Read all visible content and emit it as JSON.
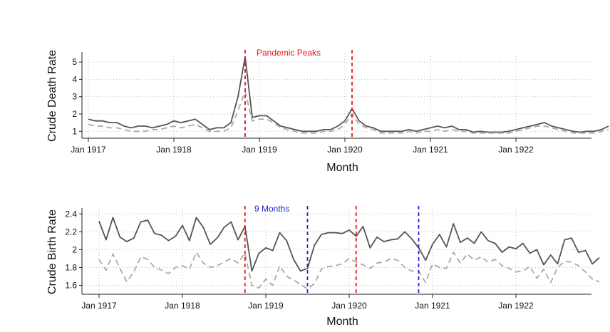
{
  "chart_data": [
    {
      "type": "line",
      "ylabel": "Crude Death Rate",
      "xlabel": "Month",
      "x_ticks": [
        "Jan 1917",
        "Jan 1918",
        "Jan 1919",
        "Jan 1920",
        "Jan 1921",
        "Jan 1922"
      ],
      "y_ticks": [
        "1",
        "2",
        "3",
        "4",
        "5"
      ],
      "ylim": [
        0.6,
        5.5
      ],
      "grid": true,
      "annotation": {
        "text": "Pandemic Peaks",
        "color": "#e8141c"
      },
      "vlines": [
        {
          "month": 22,
          "color": "#e8141c",
          "style": "dashed"
        },
        {
          "month": 37,
          "color": "#e8141c",
          "style": "dashed"
        }
      ],
      "series": [
        {
          "style": "solid",
          "color": "#555555",
          "values": [
            1.7,
            1.6,
            1.6,
            1.5,
            1.5,
            1.3,
            1.2,
            1.3,
            1.3,
            1.2,
            1.3,
            1.4,
            1.6,
            1.5,
            1.6,
            1.7,
            1.4,
            1.1,
            1.2,
            1.2,
            1.5,
            3.0,
            5.3,
            1.8,
            1.9,
            1.9,
            1.6,
            1.3,
            1.2,
            1.1,
            1.0,
            1.0,
            1.0,
            1.1,
            1.1,
            1.3,
            1.6,
            2.3,
            1.6,
            1.3,
            1.2,
            1.0,
            1.0,
            1.0,
            1.0,
            1.1,
            1.0,
            1.1,
            1.2,
            1.3,
            1.2,
            1.3,
            1.1,
            1.1,
            0.95,
            1.0,
            0.95,
            0.95,
            0.95,
            1.0,
            1.1,
            1.2,
            1.3,
            1.4,
            1.5,
            1.3,
            1.2,
            1.1,
            1.0,
            0.95,
            1.0,
            1.0,
            1.1,
            1.3
          ]
        },
        {
          "style": "dashed",
          "color": "#aaaaaa",
          "values": [
            1.4,
            1.3,
            1.3,
            1.2,
            1.2,
            1.1,
            1.0,
            1.0,
            1.0,
            1.1,
            1.1,
            1.2,
            1.3,
            1.2,
            1.3,
            1.4,
            1.2,
            1.0,
            1.0,
            1.0,
            1.2,
            2.2,
            3.3,
            1.6,
            1.7,
            1.7,
            1.5,
            1.2,
            1.1,
            1.0,
            0.9,
            0.9,
            0.9,
            1.0,
            1.0,
            1.1,
            1.4,
            2.0,
            1.4,
            1.2,
            1.1,
            0.9,
            0.9,
            0.9,
            0.9,
            1.0,
            0.9,
            1.0,
            1.0,
            1.1,
            1.0,
            1.1,
            1.0,
            1.0,
            0.9,
            0.9,
            0.9,
            0.9,
            0.9,
            0.9,
            1.0,
            1.1,
            1.2,
            1.3,
            1.3,
            1.2,
            1.1,
            1.0,
            0.9,
            0.9,
            0.9,
            0.9,
            1.0,
            1.1
          ]
        }
      ]
    },
    {
      "type": "line",
      "ylabel": "Crude Birth Rate",
      "xlabel": "Month",
      "x_ticks": [
        "Jan 1917",
        "Jan 1918",
        "Jan 1919",
        "Jan 1920",
        "Jan 1921",
        "Jan 1922"
      ],
      "y_ticks": [
        "1.6",
        "1.8",
        "2",
        "2.2",
        "2.4"
      ],
      "ylim": [
        1.5,
        2.45
      ],
      "grid": true,
      "annotation": {
        "text": "9 Months",
        "color": "#2424d8"
      },
      "vlines": [
        {
          "month": 21,
          "color": "#e8141c",
          "style": "dashed"
        },
        {
          "month": 30,
          "color": "#2424d8",
          "style": "dashed"
        },
        {
          "month": 37,
          "color": "#e8141c",
          "style": "dashed"
        },
        {
          "month": 46,
          "color": "#2424d8",
          "style": "dashed"
        }
      ],
      "series": [
        {
          "style": "solid",
          "color": "#555555",
          "values": [
            2.32,
            2.11,
            2.36,
            2.14,
            2.09,
            2.13,
            2.31,
            2.33,
            2.18,
            2.16,
            2.1,
            2.15,
            2.27,
            2.1,
            2.36,
            2.25,
            2.06,
            2.13,
            2.25,
            2.31,
            2.11,
            2.26,
            1.76,
            1.96,
            2.02,
            1.99,
            2.19,
            2.1,
            1.89,
            1.76,
            1.79,
            2.05,
            2.17,
            2.19,
            2.19,
            2.18,
            2.22,
            2.15,
            2.26,
            2.02,
            2.14,
            2.09,
            2.11,
            2.12,
            2.2,
            2.12,
            2.02,
            1.88,
            2.06,
            2.17,
            2.03,
            2.29,
            2.08,
            2.13,
            2.07,
            2.2,
            2.1,
            2.07,
            1.97,
            2.03,
            2.01,
            2.07,
            1.96,
            2.0,
            1.83,
            1.94,
            1.84,
            2.11,
            2.13,
            1.97,
            1.99,
            1.84,
            1.91
          ]
        },
        {
          "style": "dashed",
          "color": "#aaaaaa",
          "values": [
            1.89,
            1.77,
            1.95,
            1.79,
            1.64,
            1.75,
            1.92,
            1.89,
            1.8,
            1.77,
            1.73,
            1.8,
            1.82,
            1.78,
            1.97,
            1.85,
            1.8,
            1.82,
            1.86,
            1.9,
            1.85,
            1.96,
            1.6,
            1.57,
            1.67,
            1.6,
            1.82,
            1.7,
            1.66,
            1.61,
            1.56,
            1.62,
            1.78,
            1.81,
            1.82,
            1.84,
            1.9,
            1.86,
            1.83,
            1.79,
            1.85,
            1.86,
            1.9,
            1.88,
            1.8,
            1.76,
            1.76,
            1.63,
            1.84,
            1.8,
            1.79,
            1.97,
            1.85,
            1.95,
            1.88,
            1.92,
            1.86,
            1.89,
            1.82,
            1.79,
            1.75,
            1.76,
            1.81,
            1.68,
            1.78,
            1.63,
            1.8,
            1.87,
            1.86,
            1.82,
            1.75,
            1.67,
            1.64
          ]
        }
      ]
    }
  ]
}
